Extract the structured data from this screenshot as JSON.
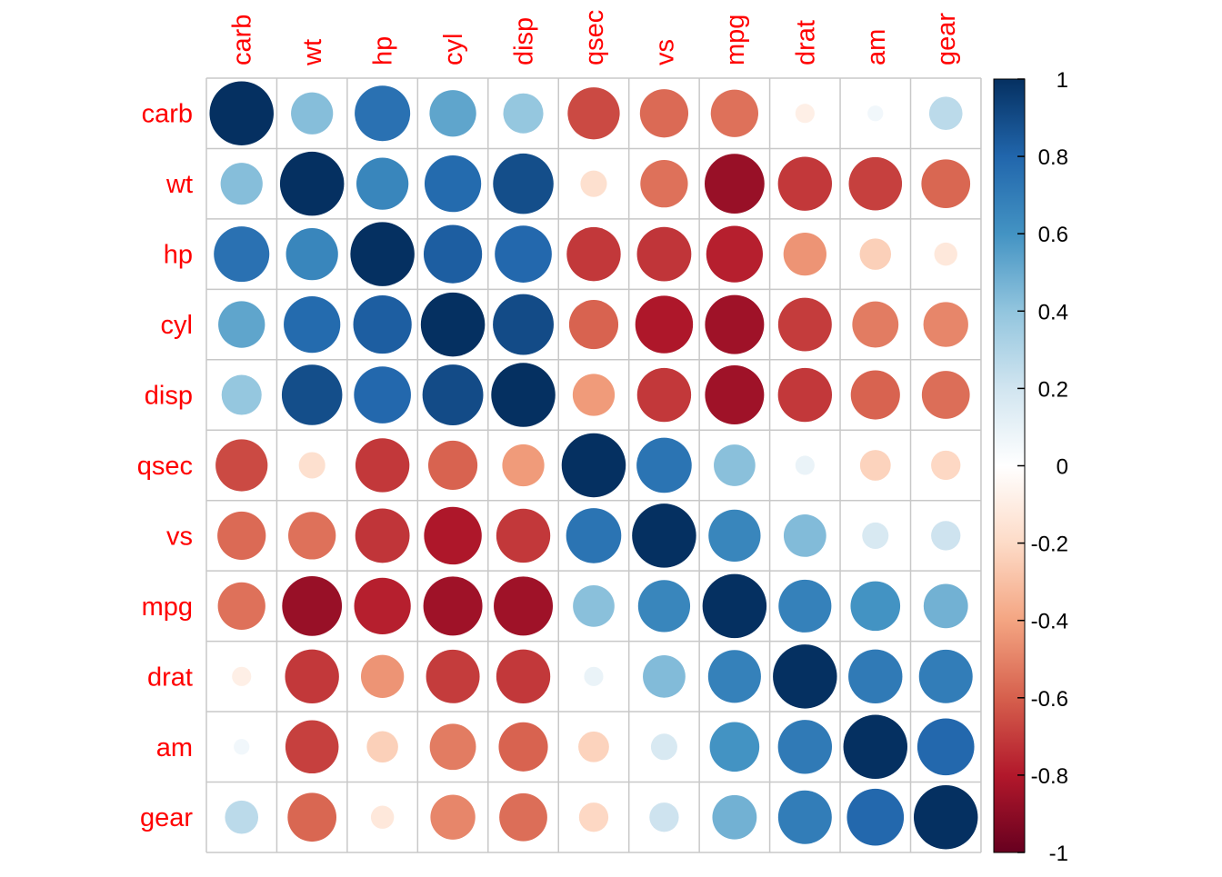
{
  "chart_data": {
    "type": "heatmap",
    "style": "correlation circle plot",
    "title": "",
    "variables": [
      "carb",
      "wt",
      "hp",
      "cyl",
      "disp",
      "qsec",
      "vs",
      "mpg",
      "drat",
      "am",
      "gear"
    ],
    "matrix": [
      [
        1.0,
        0.43,
        0.75,
        0.53,
        0.39,
        -0.66,
        -0.57,
        -0.55,
        -0.09,
        0.06,
        0.27
      ],
      [
        0.43,
        1.0,
        0.66,
        0.78,
        0.89,
        -0.17,
        -0.55,
        -0.87,
        -0.71,
        -0.69,
        -0.58
      ],
      [
        0.75,
        0.66,
        1.0,
        0.83,
        0.79,
        -0.71,
        -0.72,
        -0.78,
        -0.45,
        -0.24,
        -0.13
      ],
      [
        0.53,
        0.78,
        0.83,
        1.0,
        0.9,
        -0.59,
        -0.81,
        -0.85,
        -0.7,
        -0.52,
        -0.49
      ],
      [
        0.39,
        0.89,
        0.79,
        0.9,
        1.0,
        -0.43,
        -0.71,
        -0.85,
        -0.71,
        -0.59,
        -0.56
      ],
      [
        -0.66,
        -0.17,
        -0.71,
        -0.59,
        -0.43,
        1.0,
        0.74,
        0.42,
        0.09,
        -0.23,
        -0.21
      ],
      [
        -0.57,
        -0.55,
        -0.72,
        -0.81,
        -0.71,
        0.74,
        1.0,
        0.66,
        0.44,
        0.17,
        0.21
      ],
      [
        -0.55,
        -0.87,
        -0.78,
        -0.85,
        -0.85,
        0.42,
        0.66,
        1.0,
        0.68,
        0.6,
        0.48
      ],
      [
        -0.09,
        -0.71,
        -0.45,
        -0.7,
        -0.71,
        0.09,
        0.44,
        0.68,
        1.0,
        0.71,
        0.7
      ],
      [
        0.06,
        -0.69,
        -0.24,
        -0.52,
        -0.59,
        -0.23,
        0.17,
        0.6,
        0.71,
        1.0,
        0.79
      ],
      [
        0.27,
        -0.58,
        -0.13,
        -0.49,
        -0.56,
        -0.21,
        0.21,
        0.48,
        0.7,
        0.79,
        1.0
      ]
    ],
    "color_range": [
      -1,
      1
    ],
    "colorbar_ticks": [
      "1",
      "0.8",
      "0.6",
      "0.4",
      "0.2",
      "0",
      "-0.2",
      "-0.4",
      "-0.6",
      "-0.8",
      "-1"
    ],
    "label_color": "#FF0000",
    "grid": true,
    "legend": "right colorbar"
  }
}
